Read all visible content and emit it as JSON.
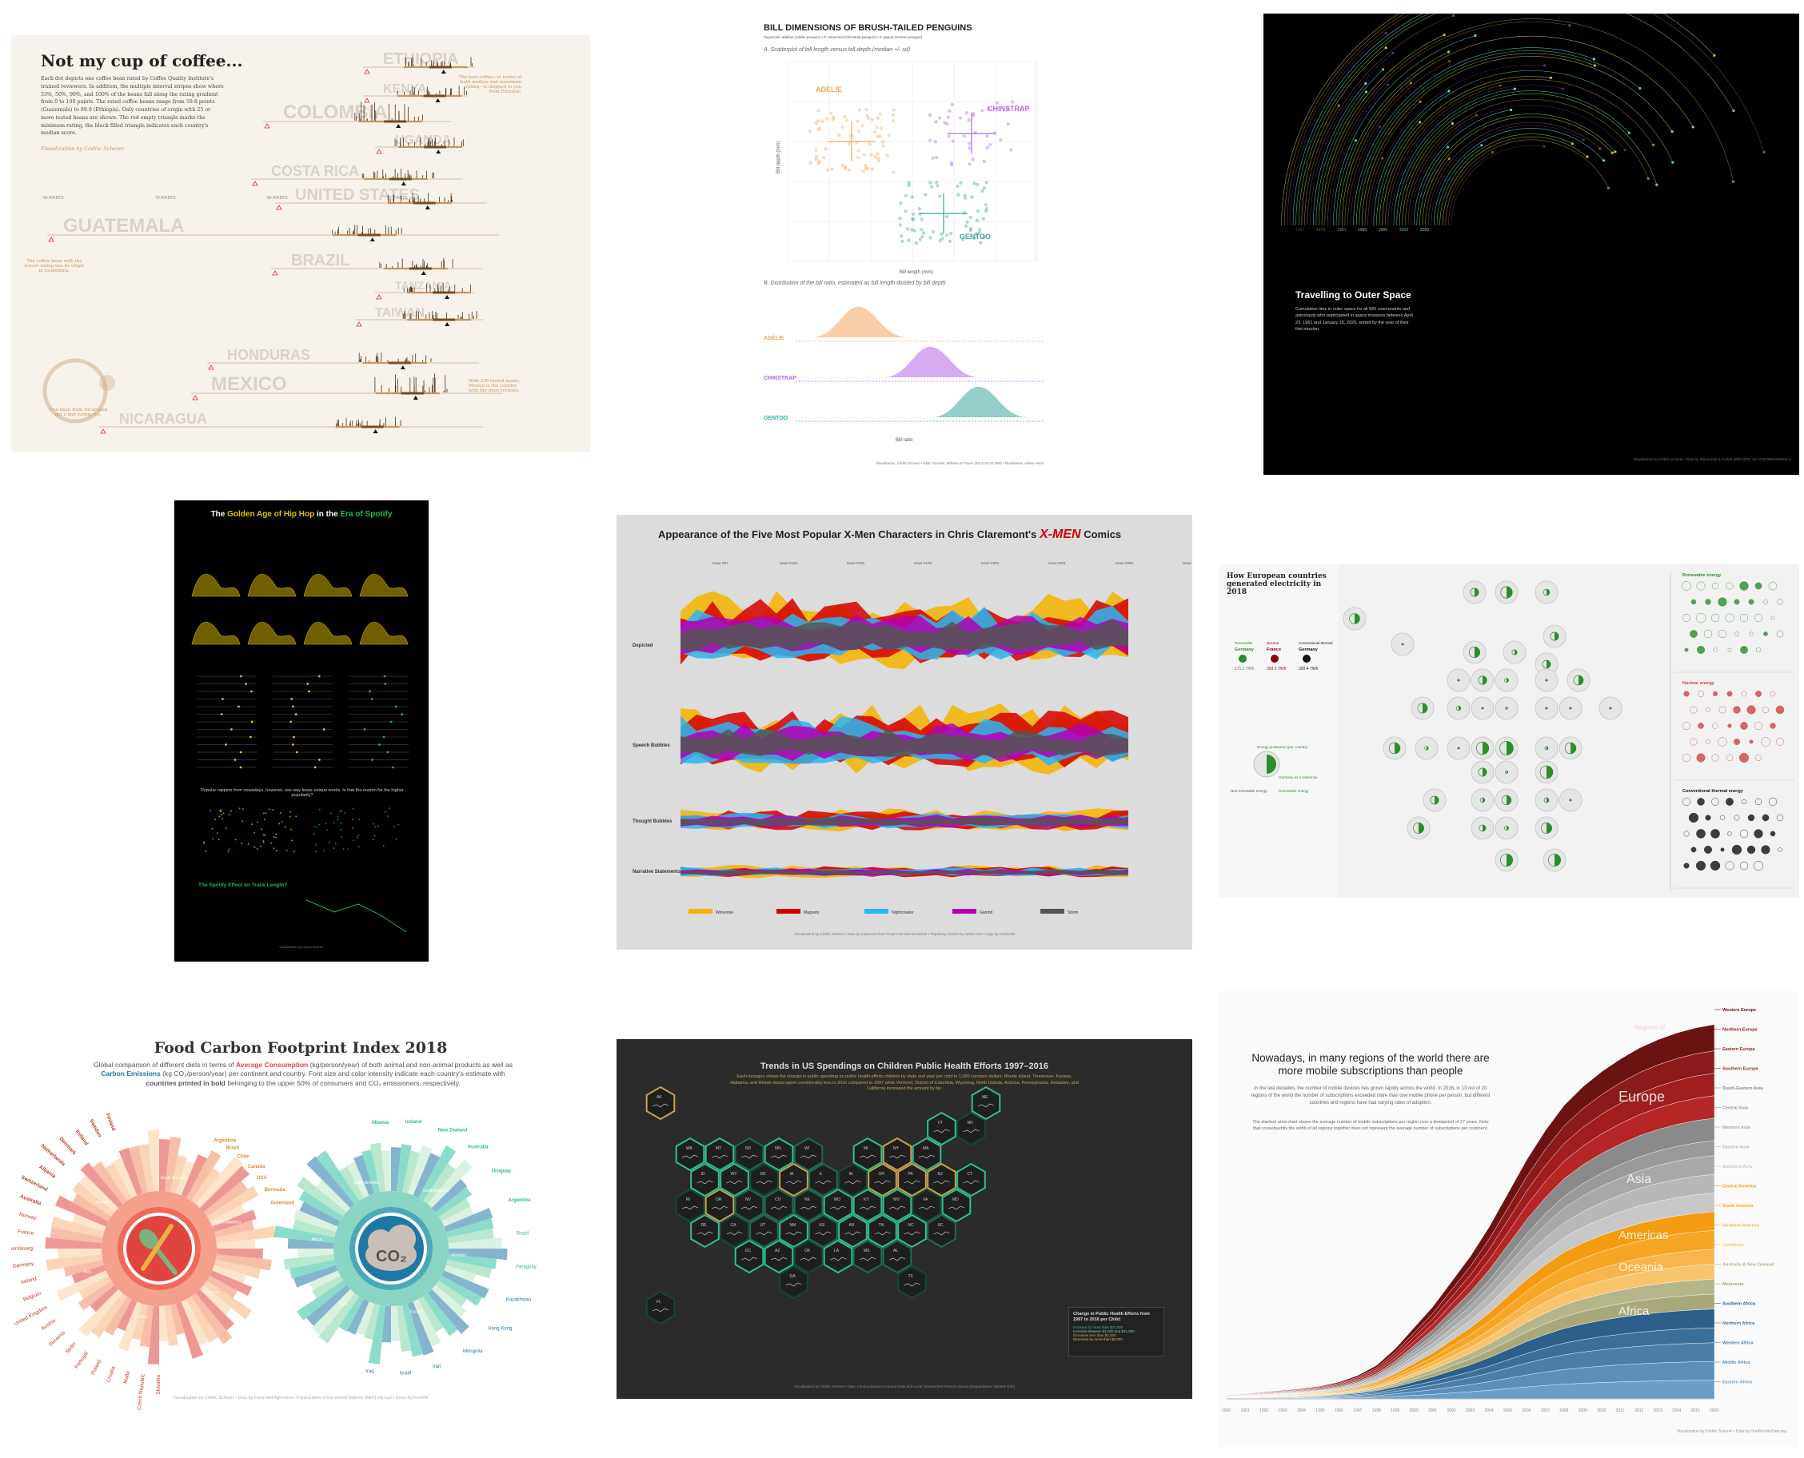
{
  "coffee": {
    "title": "Not my cup of coffee...",
    "description": "Each dot depicts one coffee bean rated by Coffee Quality Institute's trained reviewers. In addition, the multiple interval stripes show where 33%, 50%, 90%, and 100% of the beans fall along the rating gradient from 0 to 100 points. The rated coffee beans range from 59.8 points (Guatemala) to 89.9 (Ethiopia). Only countries of origin with 25 or more tested beans are shown. The red empty triangle marks the minimum rating, the black filled triangle indicates each country's median score.",
    "credit": "Visualization by Cédric Scherer",
    "axis_labels": [
      "60 POINTS",
      "70 POINTS",
      "80 POINTS",
      "90 POINTS"
    ],
    "countries": [
      "ETHIOPIA",
      "KENYA",
      "COLOMBIA",
      "UGANDA",
      "COSTA RICA",
      "UNITED STATES",
      "GUATEMALA",
      "BRAZIL",
      "TANZANIA",
      "TAIWAN",
      "HONDURAS",
      "MEXICO",
      "NICARAGUA"
    ],
    "note_ethiopia": "The best coffee—in terms of both median and maximum rating—is shipped to you from Ethiopia!",
    "note_guatemala": "The coffee bean with the lowest rating has its origin in Guatemala.",
    "note_mexico": "With 236 tested beans, Mexico is the country with the most reviews.",
    "note_nicaragua": "One bean from Nicaragua got a bad rating, too."
  },
  "penguin": {
    "title": "BILL DIMENSIONS OF BRUSH-TAILED PENGUINS",
    "subtitle": "Pygoscelis adeliae (Adélie penguin) • P. antarctica (Chinstrap penguin) • P. papua (Gentoo penguin)",
    "section_a": "A. Scatterplot of bill length versus bill depth (median +/- sd)",
    "section_b": "B. Distribution of the bill ratio, estimated as bill length divided by bill depth",
    "species": [
      "ADÉLIE",
      "CHINSTRAP",
      "GENTOO"
    ],
    "xlabel_a": "Bill length (mm)",
    "ylabel_a": "Bill depth (mm)",
    "xlabel_b": "Bill ratio",
    "footer": "Visualization: Cédric Scherer • Data: Gorman, Williams & Fraser (2014) PLoS ONE • Illustrations: Allison Horst"
  },
  "space": {
    "title": "Travelling to Outer Space",
    "description": "Cumulative time in outer space for all 565 cosmonauts and astronauts who participated in space missions between April 23, 1961 and January 15, 2020, sorted by the year of their first mission.",
    "years": [
      "1961",
      "1970",
      "1980",
      "1990",
      "2000",
      "2010",
      "2020"
    ],
    "footer": "Visualization by Cédric Scherer • Data by Stavnichuk & Corlett 2020 (DOI: 10.17632/86tsnnbv2w.1)"
  },
  "hiphop": {
    "title_a": "The ",
    "title_b": "Golden Age of Hip Hop",
    "title_c": " in the ",
    "title_d": "Era of Spotify",
    "question": "Popular rappers from nowadays, however, use way fewer unique words. Is that the reason for the higher popularity?",
    "spotify_title": "The Spotify Effect on Track Length?",
    "footer": "Visualization by Cédric Scherer"
  },
  "xmen": {
    "title": "Appearance of the Five Most Popular X-Men Characters in Chris Claremont's",
    "logo": "X-MEN",
    "title_end": "Comics",
    "issues": [
      "Issue #97",
      "Issue #125",
      "Issue #153",
      "Issue #175",
      "Issue #203",
      "Issue #231",
      "Issue #255",
      "Issue #280"
    ],
    "rows": [
      "Depicted",
      "Speech Bubbles",
      "Thought Bubbles",
      "Narrative Statements"
    ],
    "legend": [
      "Wolverine",
      "Magneto",
      "Nightcrawler",
      "Gambit",
      "Storm"
    ],
    "colors": [
      "#f4b400",
      "#d50000",
      "#29b6f6",
      "#b300b3",
      "#555555"
    ],
    "footer": "Visualization by Cédric Scherer • Data by Claremont Run Project via Malcom Barret • Popularity Scores by ranker.com • Logo by Comicraft"
  },
  "energy": {
    "title": "How European countries generated electricity in 2018",
    "countries": [
      "Germany",
      "France",
      "Germany"
    ],
    "country_labels": [
      "Renewable",
      "Nuclear",
      "Conventional thermal"
    ],
    "values": [
      "171.1 TWh",
      "393.2 TWh",
      "320.4 TWh"
    ],
    "side_titles": [
      "Renewable energy",
      "Nuclear energy",
      "Conventional thermal energy"
    ],
    "legend_a": "Energy production (per country)",
    "legend_b": "Germany as a reference",
    "legend_c": "Non-renewable energy",
    "legend_d": "Renewable energy"
  },
  "food": {
    "title": "Food Carbon Footprint Index 2018",
    "description_a": "Global comparison of different diets in terms of ",
    "average_consumption": "Average Consumption",
    "description_b": " (kg/person/year) of both animal and non-animal products as well as ",
    "carbon_emissions": "Carbon Emissions",
    "description_c": " (kg CO₂/person/year) per continent and country. Font size and color intensity indicate each country's estimate with ",
    "bold_part": "countries printed in bold",
    "description_d": " belonging to the upper 50% of consumers and CO₂ emissioners, respectively.",
    "co2": "CO₂",
    "left_labels": [
      "Finland",
      "Sweden",
      "Iceland",
      "Denmark",
      "Netherlands",
      "Albania",
      "Switzerland",
      "Australia",
      "Norway",
      "France",
      "Luxembourg",
      "Germany",
      "Ireland",
      "Belgium",
      "United Kingdom",
      "Austria",
      "Slovenia",
      "Spain",
      "Portugal",
      "Poland",
      "Croatia",
      "Malta",
      "Czech Republic",
      "Slovakia"
    ],
    "left_continents": [
      "South America",
      "North America",
      "Oceania",
      "Africa",
      "Asia",
      "Europe"
    ],
    "left_countries_right": [
      "Argentina",
      "Brazil",
      "Chile",
      "Canada",
      "USA",
      "Bermuda",
      "Greenland"
    ],
    "right_labels": [
      "Albania",
      "Iceland",
      "New Zealand",
      "Australia",
      "Uruguay",
      "Argentina",
      "Brazil",
      "Paraguay",
      "Kazakhstan",
      "Hong Kong",
      "Mongolia",
      "Iran",
      "Israel",
      "Iraq"
    ],
    "right_continents": [
      "South America",
      "Oceania",
      "Europe",
      "Asia",
      "Africa",
      "North America"
    ],
    "footer": "Visualization by Cédric Scherer • Data by Food and Agriculture Organization of the United Nations (FAO) via nu3 • Icons by FreePik"
  },
  "health": {
    "title": "Trends in US Spendings on Children Public Health Efforts 1997–2016",
    "description": "Each hexagon shows the change in public spending on public health efforts children by state and year per child in 1,000 constant dollars. Rhode Island, Tennessee, Kansas, Alabama, and Rhode Island spent considerably less in 2016 compared to 1997 while Vermont, District of Columbia, Wyoming, North Dakota, Arizona, Pennsylvania, Delaware, and California increased the amount by far.",
    "legend_title": "Change in Public Health Efforts from 1997 to 2016 per Child:",
    "legend_items": [
      "Increase by more than $31,000",
      "Increase between $1,000 and $31,000",
      "Decrease less than $2,000",
      "Decrease by more than $2,000"
    ],
    "states": [
      "AK",
      "ME",
      "VT",
      "NH",
      "WA",
      "MT",
      "ND",
      "MN",
      "WI",
      "MI",
      "NY",
      "MA",
      "ID",
      "WY",
      "SD",
      "IA",
      "IL",
      "IN",
      "OH",
      "PA",
      "NJ",
      "CT",
      "RI",
      "OR",
      "NV",
      "CO",
      "NE",
      "MO",
      "KY",
      "WV",
      "VA",
      "MD",
      "DE",
      "CA",
      "UT",
      "NM",
      "KS",
      "AR",
      "TN",
      "NC",
      "SC",
      "DC",
      "AZ",
      "OK",
      "LA",
      "MS",
      "AL",
      "GA",
      "TX",
      "FL",
      "HI"
    ],
    "footer": "Visualization by Cédric Scherer • Data: Census Bureau's Annual State and Local Government Finance Survey (Expenditures Variable E32)"
  },
  "mobile": {
    "title": "Nowadays, in many regions of the world there are more mobile subscriptions than people",
    "description": "In the last decades, the number of mobile devices has grown rapidly across the world. In 2016, in 13 out of 20 regions of the world the number of subscriptions exceeded more than one mobile phone per person, but different countries and regions have had varying rates of adoption.",
    "description2": "The stacked area chart shows the average number of mobile subscriptions per region over a timeperiod of 27 years. Note that consequently the width of all regions together does not represent the average number of subscriptions per continent.",
    "regions_big": [
      "Europe",
      "Asia",
      "Americas",
      "Oceania",
      "Africa"
    ],
    "regions_of": "Regions of",
    "legend": [
      "Western Europe",
      "Northern Europe",
      "Eastern Europe",
      "Southern Europe",
      "South-Eastern Asia",
      "Central Asia",
      "Western Asia",
      "Eastern Asia",
      "Southern Asia",
      "Central America",
      "South America",
      "Northern America",
      "Caribbean",
      "Australia & New Zealand",
      "Melanesia",
      "Southern Africa",
      "Northern Africa",
      "Western Africa",
      "Middle Africa",
      "Eastern Africa"
    ],
    "years": [
      "1990",
      "1991",
      "1992",
      "1993",
      "1994",
      "1995",
      "1996",
      "1997",
      "1998",
      "1999",
      "2000",
      "2001",
      "2002",
      "2003",
      "2004",
      "2005",
      "2006",
      "2007",
      "2008",
      "2009",
      "2010",
      "2011",
      "2012",
      "2013",
      "2014",
      "2015",
      "2016"
    ],
    "footer": "Visualization by Cédric Scherer • Data by OurWorldInData.org"
  }
}
